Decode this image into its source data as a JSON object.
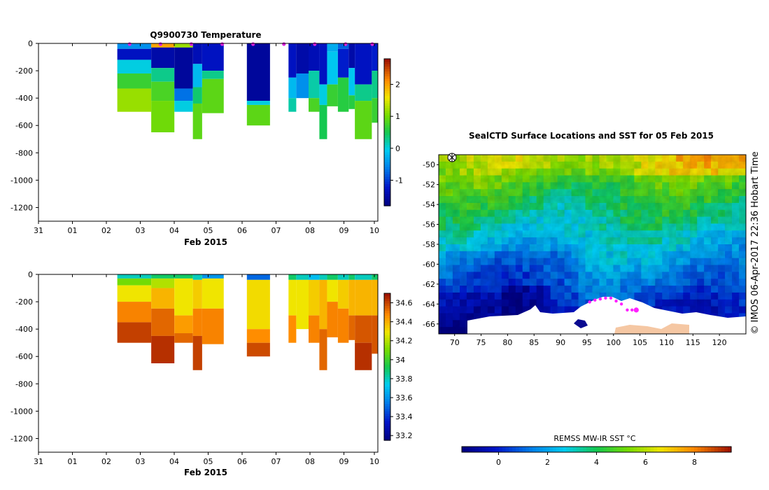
{
  "chart_data": [
    {
      "id": "temperature_section",
      "type": "heatmap",
      "title": "Q9900730  Temperature",
      "xlabel": "Feb 2015",
      "ylabel": "",
      "x_ticks": [
        "31",
        "01",
        "02",
        "03",
        "04",
        "05",
        "06",
        "07",
        "08",
        "09",
        "10"
      ],
      "y_ticks": [
        0,
        -200,
        -400,
        -600,
        -800,
        -1000,
        -1200
      ],
      "ylim": [
        -1300,
        0
      ],
      "colorbar": {
        "ticks": [
          -1,
          0,
          1,
          2
        ],
        "range": [
          -1.8,
          2.8
        ]
      },
      "profile_markers_day": [
        2.0,
        3.0,
        4.0,
        5.0,
        6.0,
        7.0,
        8.0,
        9.0,
        10.0
      ],
      "profiles": [
        {
          "start": 1.6,
          "end": 2.7,
          "max_depth": 500,
          "layers": [
            [
              0,
              40,
              -0.5
            ],
            [
              40,
              120,
              -1.3
            ],
            [
              120,
              220,
              0.0
            ],
            [
              220,
              330,
              0.7
            ],
            [
              330,
              500,
              1.2
            ]
          ]
        },
        {
          "start": 2.7,
          "end": 3.45,
          "max_depth": 650,
          "layers": [
            [
              0,
              30,
              2.0
            ],
            [
              30,
              180,
              -1.5
            ],
            [
              180,
              280,
              0.3
            ],
            [
              280,
              420,
              0.8
            ],
            [
              420,
              650,
              1.0
            ]
          ]
        },
        {
          "start": 3.45,
          "end": 4.05,
          "max_depth": 500,
          "layers": [
            [
              0,
              30,
              1.2
            ],
            [
              30,
              330,
              -1.6
            ],
            [
              330,
              420,
              -0.7
            ],
            [
              420,
              500,
              0.0
            ]
          ]
        },
        {
          "start": 4.05,
          "end": 4.35,
          "max_depth": 700,
          "layers": [
            [
              0,
              150,
              -1.4
            ],
            [
              150,
              320,
              -0.2
            ],
            [
              320,
              440,
              0.4
            ],
            [
              440,
              700,
              0.9
            ]
          ]
        },
        {
          "start": 4.35,
          "end": 5.05,
          "max_depth": 510,
          "layers": [
            [
              0,
              200,
              -1.3
            ],
            [
              200,
              260,
              0.3
            ],
            [
              260,
              510,
              0.9
            ]
          ]
        },
        {
          "start": 5.8,
          "end": 6.55,
          "max_depth": 600,
          "layers": [
            [
              0,
              420,
              -1.6
            ],
            [
              420,
              450,
              0.0
            ],
            [
              450,
              600,
              0.9
            ]
          ]
        },
        {
          "start": 7.15,
          "end": 7.4,
          "max_depth": 500,
          "layers": [
            [
              0,
              250,
              -1.3
            ],
            [
              250,
              400,
              -0.2
            ],
            [
              400,
              500,
              0.2
            ]
          ]
        },
        {
          "start": 7.4,
          "end": 7.8,
          "max_depth": 400,
          "layers": [
            [
              0,
              220,
              -1.5
            ],
            [
              220,
              400,
              -0.5
            ]
          ]
        },
        {
          "start": 7.8,
          "end": 8.15,
          "max_depth": 500,
          "layers": [
            [
              0,
              200,
              -1.4
            ],
            [
              200,
              400,
              0.2
            ],
            [
              400,
              500,
              0.8
            ]
          ]
        },
        {
          "start": 8.15,
          "end": 8.4,
          "max_depth": 700,
          "layers": [
            [
              0,
              300,
              -1.3
            ],
            [
              300,
              450,
              0.0
            ],
            [
              450,
              700,
              0.5
            ]
          ]
        },
        {
          "start": 8.4,
          "end": 8.75,
          "max_depth": 460,
          "layers": [
            [
              0,
              60,
              -0.3
            ],
            [
              60,
              300,
              -0.1
            ],
            [
              300,
              460,
              0.7
            ]
          ]
        },
        {
          "start": 8.75,
          "end": 9.1,
          "max_depth": 500,
          "layers": [
            [
              0,
              40,
              -0.8
            ],
            [
              40,
              250,
              -1.2
            ],
            [
              250,
              500,
              0.6
            ]
          ]
        },
        {
          "start": 9.1,
          "end": 9.3,
          "max_depth": 480,
          "layers": [
            [
              0,
              180,
              -1.5
            ],
            [
              180,
              380,
              -0.1
            ],
            [
              380,
              480,
              0.6
            ]
          ]
        },
        {
          "start": 9.3,
          "end": 9.85,
          "max_depth": 700,
          "layers": [
            [
              0,
              300,
              -1.3
            ],
            [
              300,
              420,
              0.3
            ],
            [
              420,
              700,
              0.9
            ]
          ]
        },
        {
          "start": 9.85,
          "end": 10.05,
          "max_depth": 580,
          "layers": [
            [
              0,
              200,
              -1.2
            ],
            [
              200,
              400,
              0.3
            ],
            [
              400,
              580,
              0.7
            ]
          ]
        }
      ]
    },
    {
      "id": "salinity_section",
      "type": "heatmap",
      "title": "",
      "xlabel": "Feb 2015",
      "ylabel": "",
      "x_ticks": [
        "31",
        "01",
        "02",
        "03",
        "04",
        "05",
        "06",
        "07",
        "08",
        "09",
        "10"
      ],
      "y_ticks": [
        0,
        -200,
        -400,
        -600,
        -800,
        -1000,
        -1200
      ],
      "ylim": [
        -1300,
        0
      ],
      "colorbar": {
        "ticks": [
          33.2,
          33.4,
          33.6,
          33.8,
          34.0,
          34.2,
          34.4,
          34.6
        ],
        "tick_labels": [
          "33.2",
          "33.4",
          "33.6",
          "33.8",
          "34",
          "34.2",
          "34.4",
          "34.6"
        ],
        "range": [
          33.15,
          34.7
        ]
      },
      "profiles": [
        {
          "start": 1.6,
          "end": 2.7,
          "max_depth": 500,
          "layers": [
            [
              0,
              30,
              33.8
            ],
            [
              30,
              80,
              34.1
            ],
            [
              80,
              200,
              34.3
            ],
            [
              200,
              350,
              34.5
            ],
            [
              350,
              500,
              34.62
            ]
          ]
        },
        {
          "start": 2.7,
          "end": 3.45,
          "max_depth": 650,
          "layers": [
            [
              0,
              30,
              33.9
            ],
            [
              30,
              100,
              34.2
            ],
            [
              100,
              250,
              34.4
            ],
            [
              250,
              450,
              34.55
            ],
            [
              450,
              650,
              34.65
            ]
          ]
        },
        {
          "start": 3.45,
          "end": 4.05,
          "max_depth": 500,
          "layers": [
            [
              0,
              30,
              33.9
            ],
            [
              30,
              300,
              34.3
            ],
            [
              300,
              430,
              34.45
            ],
            [
              430,
              500,
              34.55
            ]
          ]
        },
        {
          "start": 4.05,
          "end": 4.35,
          "max_depth": 700,
          "layers": [
            [
              0,
              40,
              33.8
            ],
            [
              40,
              250,
              34.35
            ],
            [
              250,
              450,
              34.5
            ],
            [
              450,
              700,
              34.62
            ]
          ]
        },
        {
          "start": 4.35,
          "end": 5.05,
          "max_depth": 510,
          "layers": [
            [
              0,
              30,
              33.6
            ],
            [
              30,
              250,
              34.3
            ],
            [
              250,
              510,
              34.5
            ]
          ]
        },
        {
          "start": 5.8,
          "end": 6.55,
          "max_depth": 600,
          "layers": [
            [
              0,
              40,
              33.5
            ],
            [
              40,
              400,
              34.32
            ],
            [
              400,
              500,
              34.48
            ],
            [
              500,
              600,
              34.6
            ]
          ]
        },
        {
          "start": 7.15,
          "end": 7.4,
          "max_depth": 500,
          "layers": [
            [
              0,
              40,
              33.9
            ],
            [
              40,
              300,
              34.3
            ],
            [
              300,
              500,
              34.48
            ]
          ]
        },
        {
          "start": 7.4,
          "end": 7.8,
          "max_depth": 400,
          "layers": [
            [
              0,
              40,
              33.8
            ],
            [
              40,
              400,
              34.3
            ]
          ]
        },
        {
          "start": 7.8,
          "end": 8.15,
          "max_depth": 500,
          "layers": [
            [
              0,
              40,
              33.7
            ],
            [
              40,
              300,
              34.35
            ],
            [
              300,
              500,
              34.5
            ]
          ]
        },
        {
          "start": 8.15,
          "end": 8.4,
          "max_depth": 700,
          "layers": [
            [
              0,
              40,
              33.8
            ],
            [
              40,
              400,
              34.4
            ],
            [
              400,
              700,
              34.55
            ]
          ]
        },
        {
          "start": 8.4,
          "end": 8.75,
          "max_depth": 460,
          "layers": [
            [
              0,
              40,
              33.9
            ],
            [
              40,
              200,
              34.3
            ],
            [
              200,
              460,
              34.5
            ]
          ]
        },
        {
          "start": 8.75,
          "end": 9.1,
          "max_depth": 500,
          "layers": [
            [
              0,
              40,
              33.8
            ],
            [
              40,
              250,
              34.35
            ],
            [
              250,
              500,
              34.5
            ]
          ]
        },
        {
          "start": 9.1,
          "end": 9.3,
          "max_depth": 480,
          "layers": [
            [
              0,
              40,
              33.9
            ],
            [
              40,
              300,
              34.4
            ],
            [
              300,
              480,
              34.55
            ]
          ]
        },
        {
          "start": 9.3,
          "end": 9.85,
          "max_depth": 700,
          "layers": [
            [
              0,
              40,
              33.8
            ],
            [
              40,
              300,
              34.4
            ],
            [
              300,
              500,
              34.58
            ],
            [
              500,
              700,
              34.65
            ]
          ]
        },
        {
          "start": 9.85,
          "end": 10.05,
          "max_depth": 580,
          "layers": [
            [
              0,
              40,
              33.9
            ],
            [
              40,
              300,
              34.4
            ],
            [
              300,
              580,
              34.58
            ]
          ]
        }
      ]
    },
    {
      "id": "sst_map",
      "type": "heatmap",
      "title": "SealCTD Surface Locations and SST for 05 Feb 2015",
      "xlabel": "",
      "ylabel": "",
      "x_ticks": [
        70,
        75,
        80,
        85,
        90,
        95,
        100,
        105,
        110,
        115,
        120
      ],
      "y_ticks": [
        -50,
        -52,
        -54,
        -56,
        -58,
        -60,
        -62,
        -64,
        -66
      ],
      "tick_suffix": "",
      "xlim": [
        67,
        125
      ],
      "ylim": [
        -67,
        -49
      ],
      "colorbar": {
        "label": "REMSS MW-IR SST °C",
        "ticks": [
          0,
          2,
          4,
          6,
          8
        ],
        "range": [
          -1.5,
          9.5
        ]
      },
      "seal_locations": [
        {
          "lon": 95.5,
          "lat": -63.8
        },
        {
          "lon": 96.5,
          "lat": -63.6
        },
        {
          "lon": 97.5,
          "lat": -63.5
        },
        {
          "lon": 98.5,
          "lat": -63.4
        },
        {
          "lon": 99.5,
          "lat": -63.4
        },
        {
          "lon": 100.5,
          "lat": -63.7
        },
        {
          "lon": 101.5,
          "lat": -64.0
        },
        {
          "lon": 102.6,
          "lat": -64.6
        },
        {
          "lon": 103.5,
          "lat": -64.6
        },
        {
          "lon": 104.3,
          "lat": -64.6
        }
      ],
      "side_label": "© IMOS 06-Apr-2017 22:36 Hobart Time"
    }
  ]
}
